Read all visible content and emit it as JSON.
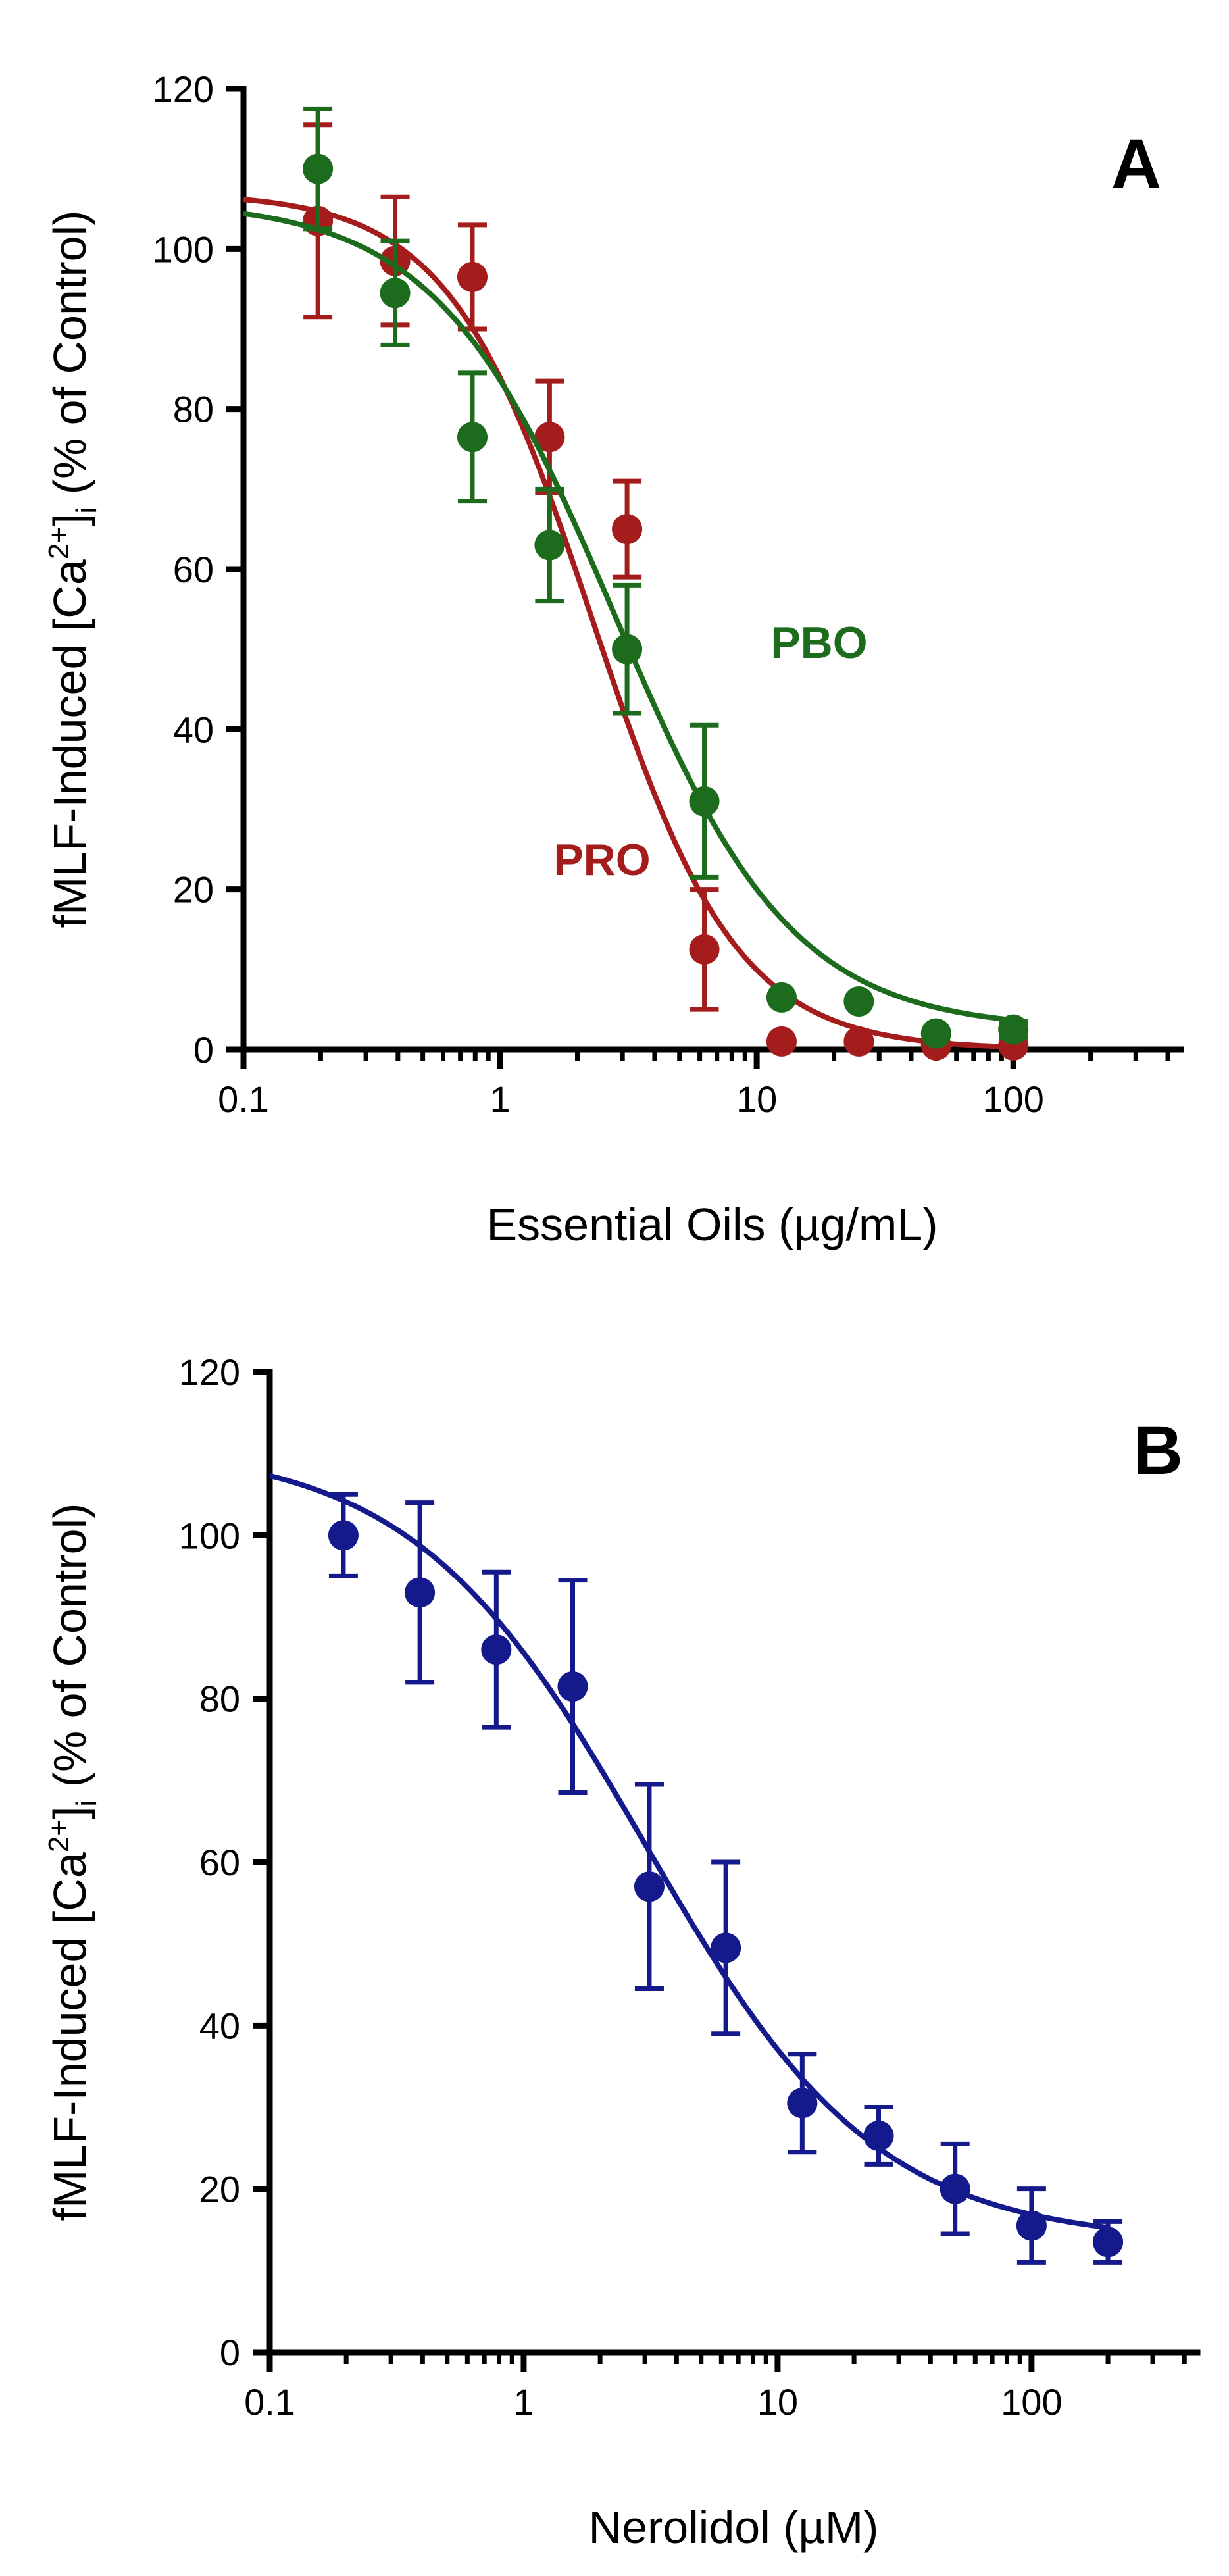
{
  "colors": {
    "PRO": "#a51c1c",
    "PBO": "#1d6b1d",
    "Nerolidol": "#141a8c"
  },
  "chart_data": [
    {
      "type": "scatter",
      "panel": "A",
      "xscale": "log",
      "xlim": [
        0.1,
        450
      ],
      "ylim": [
        0,
        120
      ],
      "xticks": [
        0.1,
        1,
        10,
        100
      ],
      "xtick_labels": [
        "0.1",
        "1",
        "10",
        "100"
      ],
      "yticks": [
        0,
        20,
        40,
        60,
        80,
        100,
        120
      ],
      "ytick_labels": [
        "0",
        "20",
        "40",
        "60",
        "80",
        "100",
        "120"
      ],
      "xlabel": "Essential Oils (µg/mL)",
      "ylabel_parts": [
        "fMLF-Induced [Ca",
        "2+",
        "]",
        "i",
        " (% of Control)"
      ],
      "series": [
        {
          "name": "PRO",
          "color_key": "PRO",
          "x": [
            0.195,
            0.39,
            0.78,
            1.56,
            3.125,
            6.25,
            12.5,
            25,
            50,
            100
          ],
          "y": [
            103.5,
            98.5,
            96.5,
            76.5,
            65,
            12.5,
            1,
            1,
            0.5,
            0.5
          ],
          "err": [
            12,
            8,
            6.5,
            7,
            6,
            7.5,
            0,
            0,
            0,
            0
          ],
          "fit": {
            "top": 107,
            "bottom": 0,
            "ec50": 2.3,
            "hill": 1.55
          },
          "label": "PRO"
        },
        {
          "name": "PBO",
          "color_key": "PBO",
          "x": [
            0.195,
            0.39,
            0.78,
            1.56,
            3.125,
            6.25,
            12.5,
            25,
            50,
            100
          ],
          "y": [
            110,
            94.5,
            76.5,
            63,
            50,
            31,
            6.5,
            6,
            2,
            2.5
          ],
          "err": [
            7.5,
            6.5,
            8,
            7,
            8,
            9.5,
            0,
            0,
            0,
            1
          ],
          "fit": {
            "top": 106,
            "bottom": 2.5,
            "ec50": 2.8,
            "hill": 1.25
          },
          "label": "PBO"
        }
      ]
    },
    {
      "type": "scatter",
      "panel": "B",
      "xscale": "log",
      "xlim": [
        0.1,
        450
      ],
      "ylim": [
        0,
        120
      ],
      "xticks": [
        0.1,
        1,
        10,
        100
      ],
      "xtick_labels": [
        "0.1",
        "1",
        "10",
        "100"
      ],
      "yticks": [
        0,
        20,
        40,
        60,
        80,
        100,
        120
      ],
      "ytick_labels": [
        "0",
        "20",
        "40",
        "60",
        "80",
        "100",
        "120"
      ],
      "xlabel": "Nerolidol (µM)",
      "ylabel_parts": [
        "fMLF-Induced [Ca",
        "2+",
        "]",
        "i",
        " (% of Control)"
      ],
      "series": [
        {
          "name": "Nerolidol",
          "color_key": "Nerolidol",
          "x": [
            0.195,
            0.39,
            0.78,
            1.56,
            3.125,
            6.25,
            12.5,
            25,
            50,
            100,
            200
          ],
          "y": [
            100,
            93,
            86,
            81.5,
            57,
            49.5,
            30.5,
            26.5,
            20,
            15.5,
            13.5
          ],
          "err": [
            5,
            11,
            9.5,
            13,
            12.5,
            10.5,
            6,
            3.5,
            5.5,
            4.5,
            2.5
          ],
          "fit": {
            "top": 111,
            "bottom": 13.5,
            "ec50": 3.0,
            "hill": 0.95
          },
          "label": ""
        }
      ]
    }
  ]
}
